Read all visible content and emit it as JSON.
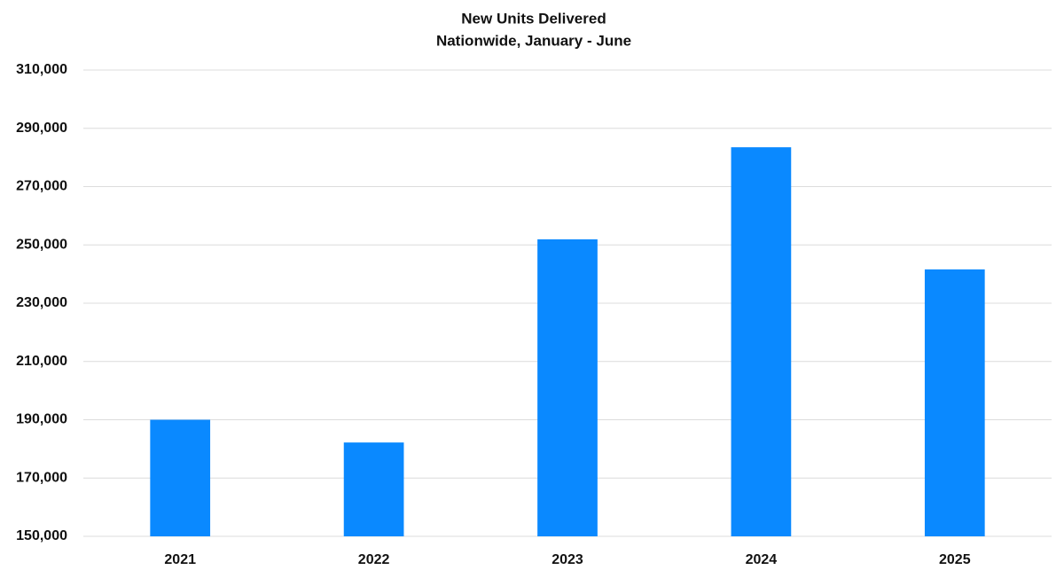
{
  "chart_data": {
    "type": "bar",
    "title": "New Units Delivered",
    "subtitle": "Nationwide, January - June",
    "categories": [
      "2021",
      "2022",
      "2023",
      "2024",
      "2025"
    ],
    "values": [
      190000,
      182200,
      251900,
      283500,
      241600
    ],
    "color": "#0a89ff",
    "ylim": [
      150000,
      310000
    ],
    "yticks": [
      {
        "value": 150000,
        "label": "150,000"
      },
      {
        "value": 170000,
        "label": "170,000"
      },
      {
        "value": 190000,
        "label": "190,000"
      },
      {
        "value": 210000,
        "label": "210,000"
      },
      {
        "value": 230000,
        "label": "230,000"
      },
      {
        "value": 250000,
        "label": "250,000"
      },
      {
        "value": 270000,
        "label": "270,000"
      },
      {
        "value": 290000,
        "label": "290,000"
      },
      {
        "value": 310000,
        "label": "310,000"
      }
    ],
    "grid": true
  }
}
